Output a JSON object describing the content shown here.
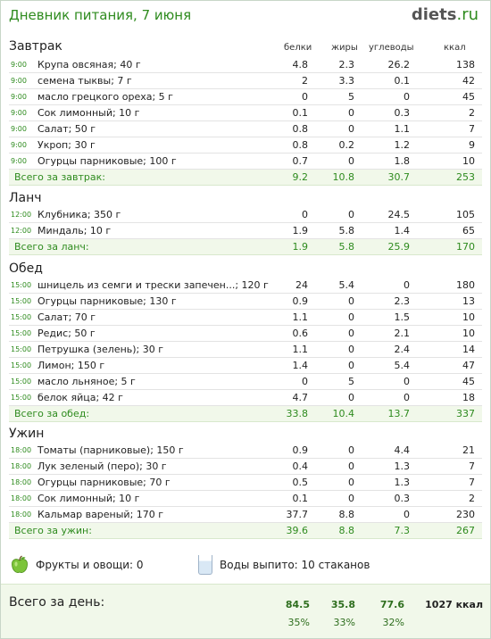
{
  "header": {
    "title": "Дневник питания, 7 июня",
    "logo_main": "diets",
    "logo_suffix": ".ru"
  },
  "columns": {
    "protein": "белки",
    "fat": "жиры",
    "carbs": "углеводы",
    "kcal": "ккал"
  },
  "meals": [
    {
      "title": "Завтрак",
      "items": [
        {
          "time": "9:00",
          "name": "Крупа овсяная; 40 г",
          "protein": "4.8",
          "fat": "2.3",
          "carbs": "26.2",
          "kcal": "138"
        },
        {
          "time": "9:00",
          "name": "семена тыквы; 7 г",
          "protein": "2",
          "fat": "3.3",
          "carbs": "0.1",
          "kcal": "42"
        },
        {
          "time": "9:00",
          "name": "масло грецкого ореха; 5 г",
          "protein": "0",
          "fat": "5",
          "carbs": "0",
          "kcal": "45"
        },
        {
          "time": "9:00",
          "name": "Сок лимонный; 10 г",
          "protein": "0.1",
          "fat": "0",
          "carbs": "0.3",
          "kcal": "2"
        },
        {
          "time": "9:00",
          "name": "Салат; 50 г",
          "protein": "0.8",
          "fat": "0",
          "carbs": "1.1",
          "kcal": "7"
        },
        {
          "time": "9:00",
          "name": "Укроп; 30 г",
          "protein": "0.8",
          "fat": "0.2",
          "carbs": "1.2",
          "kcal": "9"
        },
        {
          "time": "9:00",
          "name": "Огурцы парниковые; 100 г",
          "protein": "0.7",
          "fat": "0",
          "carbs": "1.8",
          "kcal": "10"
        }
      ],
      "total": {
        "label": "Всего за завтрак:",
        "protein": "9.2",
        "fat": "10.8",
        "carbs": "30.7",
        "kcal": "253"
      }
    },
    {
      "title": "Ланч",
      "items": [
        {
          "time": "12:00",
          "name": "Клубника; 350 г",
          "protein": "0",
          "fat": "0",
          "carbs": "24.5",
          "kcal": "105"
        },
        {
          "time": "12:00",
          "name": "Миндаль; 10 г",
          "protein": "1.9",
          "fat": "5.8",
          "carbs": "1.4",
          "kcal": "65"
        }
      ],
      "total": {
        "label": "Всего за ланч:",
        "protein": "1.9",
        "fat": "5.8",
        "carbs": "25.9",
        "kcal": "170"
      }
    },
    {
      "title": "Обед",
      "items": [
        {
          "time": "15:00",
          "name": "шницель из семги и трески запечен...; 120 г",
          "protein": "24",
          "fat": "5.4",
          "carbs": "0",
          "kcal": "180"
        },
        {
          "time": "15:00",
          "name": "Огурцы парниковые; 130 г",
          "protein": "0.9",
          "fat": "0",
          "carbs": "2.3",
          "kcal": "13"
        },
        {
          "time": "15:00",
          "name": "Салат; 70 г",
          "protein": "1.1",
          "fat": "0",
          "carbs": "1.5",
          "kcal": "10"
        },
        {
          "time": "15:00",
          "name": "Редис; 50 г",
          "protein": "0.6",
          "fat": "0",
          "carbs": "2.1",
          "kcal": "10"
        },
        {
          "time": "15:00",
          "name": "Петрушка (зелень); 30 г",
          "protein": "1.1",
          "fat": "0",
          "carbs": "2.4",
          "kcal": "14"
        },
        {
          "time": "15:00",
          "name": "Лимон; 150 г",
          "protein": "1.4",
          "fat": "0",
          "carbs": "5.4",
          "kcal": "47"
        },
        {
          "time": "15:00",
          "name": "масло льняное; 5 г",
          "protein": "0",
          "fat": "5",
          "carbs": "0",
          "kcal": "45"
        },
        {
          "time": "15:00",
          "name": "белок яйца; 42 г",
          "protein": "4.7",
          "fat": "0",
          "carbs": "0",
          "kcal": "18"
        }
      ],
      "total": {
        "label": "Всего за обед:",
        "protein": "33.8",
        "fat": "10.4",
        "carbs": "13.7",
        "kcal": "337"
      }
    },
    {
      "title": "Ужин",
      "items": [
        {
          "time": "18:00",
          "name": "Томаты (парниковые); 150 г",
          "protein": "0.9",
          "fat": "0",
          "carbs": "4.4",
          "kcal": "21"
        },
        {
          "time": "18:00",
          "name": "Лук зеленый (перо); 30 г",
          "protein": "0.4",
          "fat": "0",
          "carbs": "1.3",
          "kcal": "7"
        },
        {
          "time": "18:00",
          "name": "Огурцы парниковые; 70 г",
          "protein": "0.5",
          "fat": "0",
          "carbs": "1.3",
          "kcal": "7"
        },
        {
          "time": "18:00",
          "name": "Сок лимонный; 10 г",
          "protein": "0.1",
          "fat": "0",
          "carbs": "0.3",
          "kcal": "2"
        },
        {
          "time": "18:00",
          "name": "Кальмар вареный; 170 г",
          "protein": "37.7",
          "fat": "8.8",
          "carbs": "0",
          "kcal": "230"
        }
      ],
      "total": {
        "label": "Всего за ужин:",
        "protein": "39.6",
        "fat": "8.8",
        "carbs": "7.3",
        "kcal": "267"
      }
    }
  ],
  "extras": {
    "fruits": "Фрукты и овощи: 0",
    "water": "Воды выпито: 10 стаканов"
  },
  "day": {
    "label": "Всего за день:",
    "protein": "84.5",
    "fat": "35.8",
    "carbs": "77.6",
    "kcal": "1027 ккал",
    "protein_pct": "35%",
    "fat_pct": "33%",
    "carbs_pct": "32%"
  }
}
